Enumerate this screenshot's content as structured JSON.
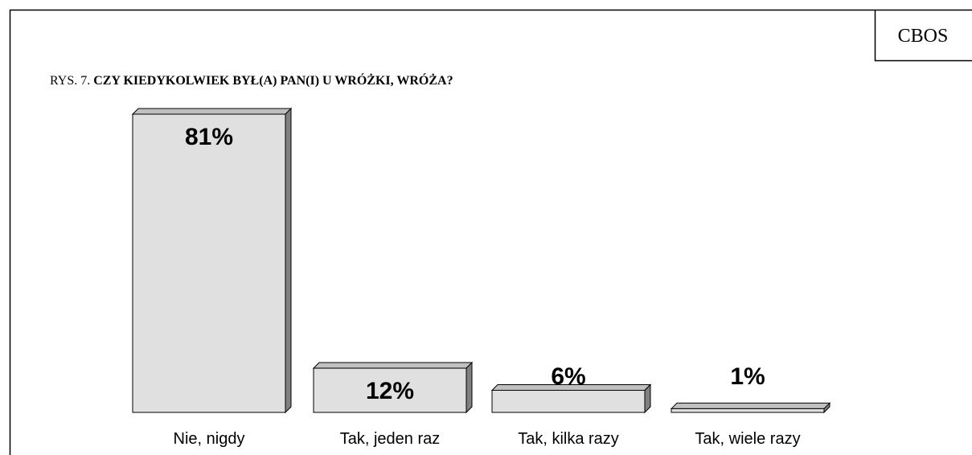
{
  "chart_data": {
    "type": "bar3d",
    "source": "CBOS",
    "title_prefix": "RYS. 7.",
    "title": "CZY KIEDYKOLWIEK BYŁ(A) PAN(I) U WRÓŻKI, WRÓŻA?",
    "categories": [
      "Nie, nigdy",
      "Tak, jeden raz",
      "Tak, kilka razy",
      "Tak, wiele razy"
    ],
    "values": [
      81,
      12,
      6,
      1
    ],
    "value_labels": [
      "81%",
      "12%",
      "6%",
      "1%"
    ],
    "color": "#e0e0e0"
  }
}
